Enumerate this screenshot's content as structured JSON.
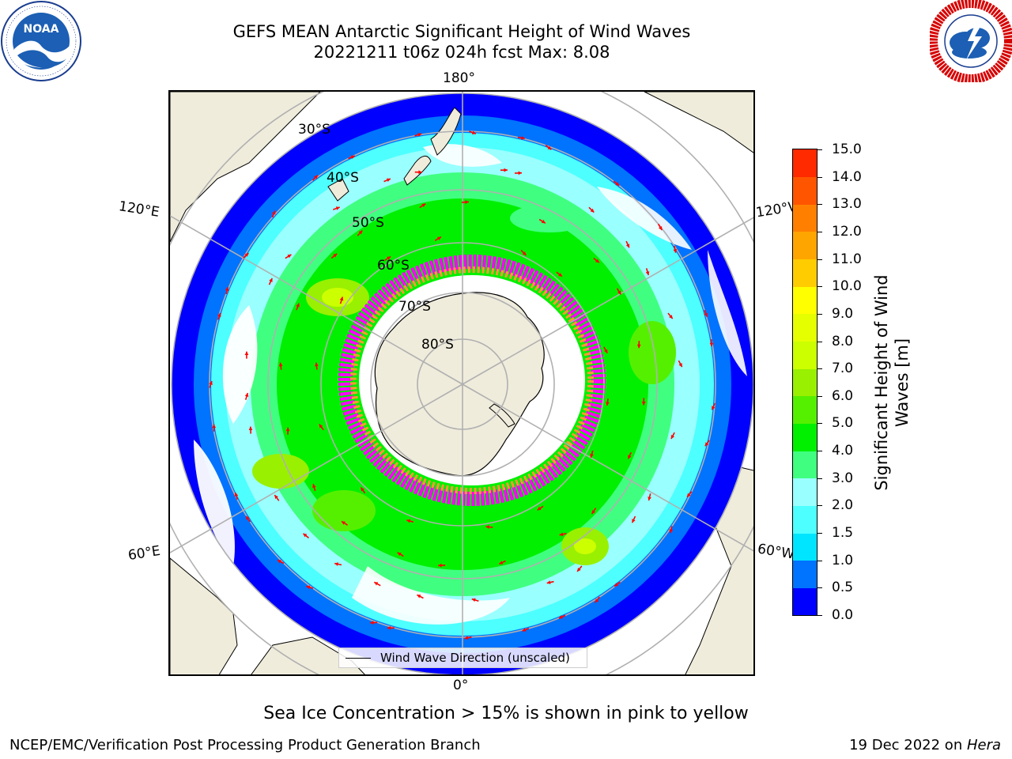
{
  "title": {
    "line1": "GEFS MEAN Antarctic Significant Height of Wind Waves",
    "line2": "20221211 t06z 024h fcst   Max: 8.08"
  },
  "logos": {
    "noaa_text": "NOAA",
    "noaa_ring": "NATIONAL OCEANIC AND ATMOSPHERIC ADMINISTRATION · U.S. DEPARTMENT OF COMMERCE",
    "nws_ring": "NATIONAL WEATHER SERVICE"
  },
  "map": {
    "projection": "south polar stereographic",
    "lon_labels": {
      "top": "180°",
      "bottom": "0°",
      "upper_left": "120°E",
      "upper_right": "120°W",
      "lower_left": "60°E",
      "lower_right": "60°W"
    },
    "lat_labels": [
      "30°S",
      "40°S",
      "50°S",
      "60°S",
      "70°S",
      "80°S"
    ],
    "legend_label": "Wind Wave Direction (unscaled)",
    "arrow_color": "#ff0000",
    "land_color": "#efecdc",
    "ice_colors": [
      "#ff00ff",
      "#ff9933",
      "#ffd24a"
    ]
  },
  "colorbar": {
    "label": "Significant Height of Wind Waves [m]",
    "ticks": [
      "0.0",
      "0.5",
      "1.0",
      "1.5",
      "2.0",
      "3.0",
      "4.0",
      "5.0",
      "6.0",
      "7.0",
      "8.0",
      "9.0",
      "10.0",
      "11.0",
      "12.0",
      "13.0",
      "14.0",
      "15.0"
    ],
    "colors": [
      "#0000ff",
      "#0073ff",
      "#00e5ff",
      "#4dffff",
      "#99ffff",
      "#40ff80",
      "#00f000",
      "#55f000",
      "#99f000",
      "#ccff00",
      "#e6ff00",
      "#ffff00",
      "#ffcc00",
      "#ffa500",
      "#ff8000",
      "#ff5500",
      "#ff2a00"
    ]
  },
  "footer": {
    "ice_note": "Sea Ice Concentration > 15% is shown in pink to yellow",
    "left": "NCEP/EMC/Verification Post Processing Product Generation Branch",
    "right_date": "19 Dec 2022 on ",
    "right_host": "Hera"
  }
}
